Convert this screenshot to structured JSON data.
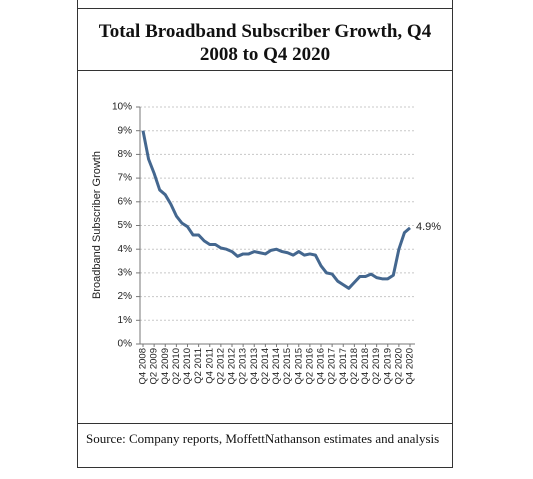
{
  "chart_data": {
    "type": "line",
    "title": "Total Broadband Subscriber Growth, Q4 2008 to Q4 2020",
    "y_label": "Broadband Subscriber Growth",
    "source": "Source: Company reports, MoffettNathanson estimates and analysis",
    "categories": [
      "Q4 2008",
      null,
      "Q2 2009",
      null,
      "Q4 2009",
      null,
      "Q2 2010",
      null,
      "Q4 2010",
      null,
      "Q2 2011",
      null,
      "Q4 2011",
      null,
      "Q2 2012",
      null,
      "Q4 2012",
      null,
      "Q2 2013",
      null,
      "Q4 2013",
      null,
      "Q2 2014",
      null,
      "Q4 2014",
      null,
      "Q2 2015",
      null,
      "Q4 2015",
      null,
      "Q2 2016",
      null,
      "Q4 2016",
      null,
      "Q2 2017",
      null,
      "Q4 2017",
      null,
      "Q2 2018",
      null,
      "Q4 2018",
      null,
      "Q2 2019",
      null,
      "Q4 2019",
      null,
      "Q2 2020",
      null,
      "Q4 2020"
    ],
    "values": [
      9.0,
      7.8,
      7.2,
      6.5,
      6.3,
      5.9,
      5.4,
      5.1,
      4.95,
      4.6,
      4.6,
      4.35,
      4.2,
      4.2,
      4.05,
      4.0,
      3.9,
      3.7,
      3.8,
      3.8,
      3.9,
      3.85,
      3.8,
      3.95,
      4.0,
      3.9,
      3.85,
      3.75,
      3.9,
      3.75,
      3.8,
      3.75,
      3.3,
      3.0,
      2.95,
      2.65,
      2.5,
      2.35,
      2.6,
      2.85,
      2.85,
      2.95,
      2.8,
      2.75,
      2.75,
      2.9,
      4.0,
      4.7,
      4.9
    ],
    "value_labels": [
      null,
      null,
      null,
      null,
      null,
      null,
      null,
      null,
      null,
      null,
      null,
      null,
      null,
      null,
      null,
      null,
      null,
      null,
      null,
      null,
      null,
      null,
      null,
      null,
      null,
      null,
      null,
      null,
      null,
      null,
      null,
      null,
      null,
      null,
      null,
      null,
      null,
      null,
      null,
      null,
      null,
      null,
      null,
      null,
      null,
      null,
      null,
      null,
      "4.9%"
    ],
    "color": "#44678f",
    "ylim": [
      0,
      10
    ],
    "yticks": [
      {
        "value": 0,
        "label": "0%"
      },
      {
        "value": 1,
        "label": "1%"
      },
      {
        "value": 2,
        "label": "2%"
      },
      {
        "value": 3,
        "label": "3%"
      },
      {
        "value": 4,
        "label": "4%"
      },
      {
        "value": 5,
        "label": "5%"
      },
      {
        "value": 6,
        "label": "6%"
      },
      {
        "value": 7,
        "label": "7%"
      },
      {
        "value": 8,
        "label": "8%"
      },
      {
        "value": 9,
        "label": "9%"
      },
      {
        "value": 10,
        "label": "10%"
      }
    ],
    "grid": true
  }
}
